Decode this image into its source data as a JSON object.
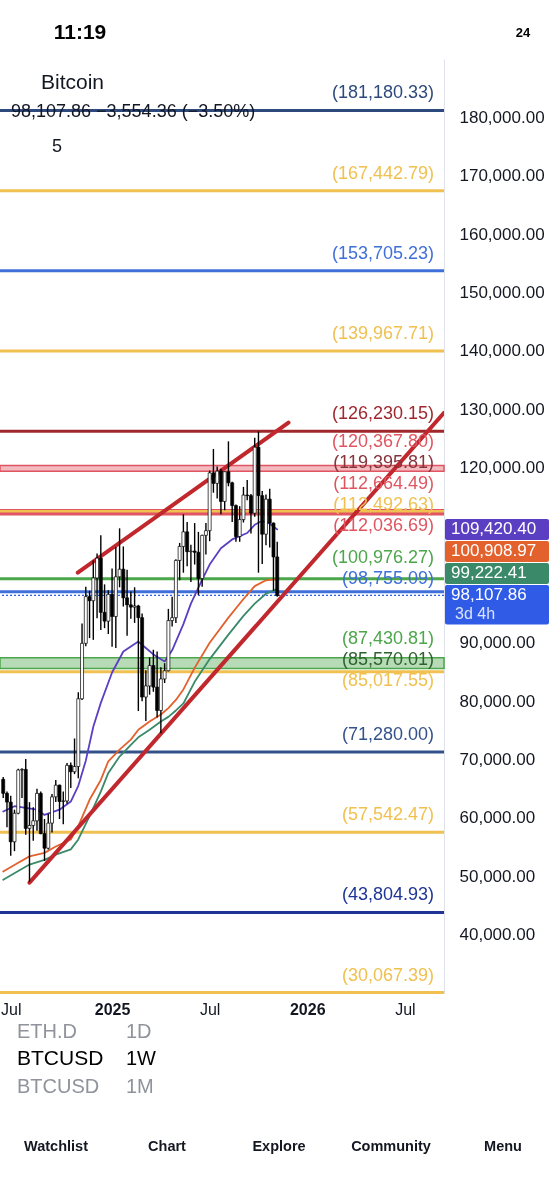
{
  "chart_data": {
    "type": "candlestick",
    "title": "Bitcoin",
    "x": [
      "2024-06-17",
      "2024-06-24",
      "2024-07-01",
      "2024-07-08",
      "2024-07-15",
      "2024-07-22",
      "2024-07-29",
      "2024-08-05",
      "2024-08-12",
      "2024-08-19",
      "2024-08-26",
      "2024-09-02",
      "2024-09-09",
      "2024-09-16",
      "2024-09-23",
      "2024-09-30",
      "2024-10-07",
      "2024-10-14",
      "2024-10-21",
      "2024-10-28",
      "2024-11-04",
      "2024-11-11",
      "2024-11-18",
      "2024-11-25",
      "2024-12-02",
      "2024-12-09",
      "2024-12-16",
      "2024-12-23",
      "2024-12-30",
      "2025-01-06",
      "2025-01-13",
      "2025-01-20",
      "2025-01-27",
      "2025-02-03",
      "2025-02-10",
      "2025-02-17",
      "2025-02-24",
      "2025-03-03",
      "2025-03-10",
      "2025-03-17",
      "2025-03-24",
      "2025-03-31",
      "2025-04-07",
      "2025-04-14",
      "2025-04-21",
      "2025-04-28",
      "2025-05-05",
      "2025-05-12",
      "2025-05-19",
      "2025-05-26",
      "2025-06-02",
      "2025-06-09",
      "2025-06-16",
      "2025-06-23",
      "2025-06-30",
      "2025-07-07",
      "2025-07-14",
      "2025-07-21",
      "2025-07-28",
      "2025-08-04",
      "2025-08-11",
      "2025-08-18",
      "2025-08-25",
      "2025-09-01",
      "2025-09-08",
      "2025-09-15",
      "2025-09-22",
      "2025-09-29",
      "2025-10-06",
      "2025-10-13",
      "2025-10-20",
      "2025-10-27",
      "2025-11-03",
      "2025-11-10"
    ],
    "ohlc": [
      [
        66600,
        67000,
        63400,
        64200
      ],
      [
        64200,
        64500,
        58400,
        62700
      ],
      [
        62700,
        63800,
        53500,
        55900
      ],
      [
        55900,
        61400,
        54300,
        60800
      ],
      [
        60800,
        68400,
        60600,
        68200
      ],
      [
        68200,
        68500,
        63400,
        68300
      ],
      [
        68300,
        70100,
        57100,
        58200
      ],
      [
        58200,
        62700,
        49000,
        58700
      ],
      [
        58700,
        61800,
        56100,
        59500
      ],
      [
        59500,
        65000,
        57800,
        64200
      ],
      [
        64200,
        64500,
        57200,
        57300
      ],
      [
        57300,
        59800,
        52600,
        54800
      ],
      [
        54800,
        60700,
        54600,
        59100
      ],
      [
        59100,
        64100,
        57500,
        63600
      ],
      [
        63600,
        66500,
        62700,
        65600
      ],
      [
        65600,
        65700,
        59800,
        62800
      ],
      [
        62800,
        64500,
        58900,
        62900
      ],
      [
        62900,
        69400,
        62400,
        69000
      ],
      [
        69000,
        69500,
        65100,
        67900
      ],
      [
        67900,
        73600,
        67500,
        68800
      ],
      [
        68800,
        81500,
        66800,
        80400
      ],
      [
        80400,
        93300,
        80200,
        89900
      ],
      [
        89900,
        99600,
        89400,
        97900
      ],
      [
        97900,
        98900,
        90800,
        97200
      ],
      [
        97200,
        104100,
        90500,
        101100
      ],
      [
        101100,
        105300,
        94200,
        104500
      ],
      [
        104500,
        108400,
        92200,
        95200
      ],
      [
        95200,
        100000,
        92500,
        93700
      ],
      [
        93700,
        99000,
        91500,
        98300
      ],
      [
        98300,
        102700,
        89300,
        94500
      ],
      [
        94500,
        106400,
        89100,
        101300
      ],
      [
        101300,
        109600,
        99500,
        102600
      ],
      [
        102600,
        106500,
        96200,
        97700
      ],
      [
        97700,
        102500,
        91200,
        96500
      ],
      [
        96500,
        98800,
        94100,
        96100
      ],
      [
        96100,
        99500,
        93400,
        96300
      ],
      [
        96300,
        96500,
        78300,
        94300
      ],
      [
        94300,
        95000,
        80000,
        80700
      ],
      [
        80700,
        85300,
        76600,
        82600
      ],
      [
        82600,
        87500,
        81100,
        86100
      ],
      [
        86100,
        88800,
        81600,
        82400
      ],
      [
        82400,
        88500,
        77200,
        78400
      ],
      [
        78400,
        85800,
        74500,
        83800
      ],
      [
        83800,
        86500,
        83100,
        85200
      ],
      [
        85200,
        95800,
        85100,
        93800
      ],
      [
        93800,
        97900,
        92800,
        94300
      ],
      [
        94300,
        104300,
        93400,
        104100
      ],
      [
        104100,
        107100,
        100700,
        106500
      ],
      [
        106500,
        112000,
        102000,
        109000
      ],
      [
        109000,
        110700,
        103100,
        105600
      ],
      [
        105600,
        106800,
        100400,
        105700
      ],
      [
        105700,
        110500,
        103400,
        105500
      ],
      [
        105500,
        109000,
        98200,
        101000
      ],
      [
        101000,
        108500,
        99600,
        108400
      ],
      [
        108400,
        110500,
        105100,
        109200
      ],
      [
        109200,
        119500,
        107400,
        119100
      ],
      [
        119100,
        123200,
        115700,
        117300
      ],
      [
        117300,
        120200,
        114700,
        119400
      ],
      [
        119400,
        119800,
        112000,
        114200
      ],
      [
        114200,
        119300,
        112700,
        119300
      ],
      [
        119300,
        124500,
        116800,
        117400
      ],
      [
        117400,
        117600,
        110700,
        113500
      ],
      [
        113500,
        113700,
        107300,
        108200
      ],
      [
        108200,
        113400,
        107300,
        111100
      ],
      [
        111100,
        116700,
        110600,
        115300
      ],
      [
        115300,
        117900,
        114400,
        115200
      ],
      [
        115200,
        115500,
        108700,
        112200
      ],
      [
        112200,
        125100,
        111600,
        123500
      ],
      [
        123500,
        126200,
        102000,
        115200
      ],
      [
        115200,
        116000,
        103500,
        108600
      ],
      [
        108600,
        115400,
        106700,
        114600
      ],
      [
        114600,
        116400,
        106300,
        110500
      ],
      [
        110500,
        110600,
        98900,
        104700
      ],
      [
        104700,
        107300,
        97900,
        98107.86
      ]
    ],
    "colors": [
      "#000000",
      "#000000",
      "#000000",
      "#ffffff",
      "#ffffff",
      "#ffffff",
      "#000000",
      "#ffffff",
      "#ffffff",
      "#ffffff",
      "#000000",
      "#000000",
      "#ffffff",
      "#ffffff",
      "#ffffff",
      "#000000",
      "#ffffff",
      "#ffffff",
      "#000000",
      "#ffffff",
      "#ffffff",
      "#ffffff",
      "#ffffff",
      "#000000",
      "#ffffff",
      "#ffffff",
      "#000000",
      "#000000",
      "#ffffff",
      "#000000",
      "#ffffff",
      "#ffffff",
      "#000000",
      "#000000",
      "#000000",
      "#ffffff",
      "#000000",
      "#000000",
      "#ffffff",
      "#ffffff",
      "#000000",
      "#000000",
      "#ffffff",
      "#ffffff",
      "#ffffff",
      "#ffffff",
      "#ffffff",
      "#ffffff",
      "#ffffff",
      "#000000",
      "#ffffff",
      "#000000",
      "#000000",
      "#ffffff",
      "#ffffff",
      "#ffffff",
      "#000000",
      "#ffffff",
      "#000000",
      "#ffffff",
      "#000000",
      "#000000",
      "#000000",
      "#ffffff",
      "#ffffff",
      "#000000",
      "#000000",
      "#ffffff",
      "#000000",
      "#000000",
      "#ffffff",
      "#000000",
      "#000000",
      "#000000"
    ],
    "series": [
      {
        "type": "line",
        "color": "#5b3fc2",
        "x": [
          "2024-06-17",
          "2024-07-08",
          "2024-08-19",
          "2024-09-02",
          "2024-09-30",
          "2024-10-21",
          "2024-11-04",
          "2024-11-18",
          "2024-12-02",
          "2024-12-16",
          "2025-01-06",
          "2025-01-27",
          "2025-02-24",
          "2025-03-10",
          "2025-03-24",
          "2025-04-14",
          "2025-04-28",
          "2025-05-19",
          "2025-06-02",
          "2025-06-23",
          "2025-07-07",
          "2025-07-28",
          "2025-08-18",
          "2025-09-15",
          "2025-09-29",
          "2025-10-13",
          "2025-10-27",
          "2025-11-10"
        ],
        "values": [
          61100,
          62000,
          61400,
          60500,
          61400,
          62800,
          65500,
          69800,
          75600,
          79700,
          84900,
          88500,
          90200,
          89100,
          88000,
          86800,
          88700,
          93200,
          96700,
          100800,
          103400,
          106200,
          107700,
          108800,
          110200,
          110900,
          110400,
          109420.4
        ]
      },
      {
        "type": "line",
        "color": "#e2612d",
        "x": [
          "2024-06-17",
          "2024-07-15",
          "2024-08-05",
          "2024-09-02",
          "2024-09-23",
          "2024-10-21",
          "2024-11-04",
          "2024-11-25",
          "2024-12-16",
          "2024-12-30",
          "2025-01-20",
          "2025-02-10",
          "2025-02-24",
          "2025-03-17",
          "2025-04-07",
          "2025-04-21",
          "2025-05-05",
          "2025-05-19",
          "2025-06-09",
          "2025-07-07",
          "2025-08-11",
          "2025-09-08",
          "2025-09-29",
          "2025-10-20",
          "2025-11-10"
        ],
        "values": [
          50800,
          52300,
          53400,
          54000,
          55100,
          56300,
          58600,
          63100,
          66500,
          69700,
          71700,
          73400,
          75100,
          76500,
          77700,
          78800,
          80200,
          82000,
          85700,
          90000,
          94300,
          97500,
          99700,
          100700,
          100908.97
        ]
      },
      {
        "type": "line",
        "color": "#3a8a6a",
        "x": [
          "2024-06-17",
          "2024-07-15",
          "2024-08-05",
          "2024-09-02",
          "2024-09-23",
          "2024-10-21",
          "2024-11-04",
          "2024-11-25",
          "2024-12-16",
          "2024-12-30",
          "2025-01-20",
          "2025-02-10",
          "2025-02-24",
          "2025-03-17",
          "2025-04-07",
          "2025-04-21",
          "2025-05-05",
          "2025-05-19",
          "2025-06-09",
          "2025-07-07",
          "2025-08-11",
          "2025-09-08",
          "2025-09-29",
          "2025-10-20",
          "2025-11-10"
        ],
        "values": [
          49400,
          50900,
          52000,
          52800,
          53700,
          54600,
          56300,
          60300,
          64500,
          67700,
          70500,
          72500,
          73800,
          75100,
          76500,
          77300,
          78400,
          79600,
          83300,
          87200,
          91400,
          94600,
          96700,
          98400,
          99222.41
        ]
      },
      {
        "type": "line",
        "color": "#c0282d",
        "x": [
          "2024-11-03",
          "2025-12-01"
        ],
        "values": [
          102000,
          127700
        ]
      },
      {
        "type": "line",
        "color": "#c0282d",
        "x": [
          "2024-08-05",
          "2026-09-17"
        ],
        "values": [
          48900,
          129400
        ]
      }
    ],
    "ref_lines": [
      {
        "axis": "y",
        "value": 181180.33,
        "label": "(181,180.33)",
        "color": "#2e4a7d"
      },
      {
        "axis": "y",
        "value": 167442.79,
        "label": "(167,442.79)",
        "color": "#f0c050"
      },
      {
        "axis": "y",
        "value": 153705.23,
        "label": "(153,705.23)",
        "color": "#3f6fd8"
      },
      {
        "axis": "y",
        "value": 139967.71,
        "label": "(139,967.71)",
        "color": "#f0c050"
      },
      {
        "axis": "y",
        "value": 126230.15,
        "label": "(126,230.15)",
        "color": "#a0282d"
      },
      {
        "axis": "y",
        "value": 112664.49,
        "label": "(112,664.49)",
        "color": "#e05561"
      },
      {
        "axis": "y",
        "value": 112492.63,
        "label": "(112,492.63)",
        "color": "#f0c050"
      },
      {
        "axis": "y",
        "value": 112036.69,
        "label": "(112,036.69)",
        "color": "#e05561"
      },
      {
        "axis": "y",
        "value": 100976.27,
        "label": "(100,976.27)",
        "color": "#4ca64a"
      },
      {
        "axis": "y",
        "value": 98755.09,
        "label": "(98,755.09)",
        "color": "#3f6fd8"
      },
      {
        "axis": "y",
        "value": 98107.86,
        "label": "98,107.86",
        "color": "#2f5be6",
        "line_style": "dotted"
      },
      {
        "axis": "y",
        "value": 85017.55,
        "label": "(85,017.55)",
        "color": "#f0c050"
      },
      {
        "axis": "y",
        "value": 71280.0,
        "label": "(71,280.00)",
        "color": "#34528a"
      },
      {
        "axis": "y",
        "value": 57542.47,
        "label": "(57,542.47)",
        "color": "#f0c050"
      },
      {
        "axis": "y",
        "value": 43804.93,
        "label": "(43,804.93)",
        "color": "#1f3596"
      },
      {
        "axis": "y",
        "value": 30067.39,
        "label": "(30,067.39)",
        "color": "#f0c050"
      }
    ],
    "bands": [
      {
        "axis": "y",
        "from": 119395.81,
        "to": 120367.8,
        "color": "#e05561"
      },
      {
        "axis": "y",
        "from": 85570.01,
        "to": 87430.81,
        "color": "#4ca64a"
      }
    ],
    "xlim": [
      "2024-06-11",
      "2026-09-17"
    ],
    "xticks": [
      {
        "value": "2024-07-01",
        "label": "Jul"
      },
      {
        "value": "2025-01-06",
        "label": "2025"
      },
      {
        "value": "2025-07-07",
        "label": "Jul"
      },
      {
        "value": "2026-01-05",
        "label": "2026"
      },
      {
        "value": "2026-07-06",
        "label": "Jul"
      }
    ],
    "ylim": [
      30000,
      190000
    ],
    "yticks": [
      {
        "value": 40000,
        "label": "40,000.00"
      },
      {
        "value": 50000,
        "label": "50,000.00"
      },
      {
        "value": 60000,
        "label": "60,000.00"
      },
      {
        "value": 70000,
        "label": "70,000.00"
      },
      {
        "value": 80000,
        "label": "80,000.00"
      },
      {
        "value": 90000,
        "label": "90,000.00"
      },
      {
        "value": 120000,
        "label": "120,000.00"
      },
      {
        "value": 130000,
        "label": "130,000.00"
      },
      {
        "value": 140000,
        "label": "140,000.00"
      },
      {
        "value": 150000,
        "label": "150,000.00"
      },
      {
        "value": 160000,
        "label": "160,000.00"
      },
      {
        "value": 170000,
        "label": "170,000.00"
      },
      {
        "value": 180000,
        "label": "180,000.00"
      }
    ],
    "annotations": [
      "11:19",
      "24",
      "98,107.86 −3,554.36 (−3.50%)",
      "5",
      "3d 4h",
      "ETH.D",
      "1D",
      "BTCUSD",
      "1W",
      "BTCUSD",
      "1M",
      "Watchlist",
      "Chart",
      "Explore",
      "Community",
      "Menu",
      "109,420.40",
      "100,908.97",
      "99,222.41",
      {
        "text": "(120,367.80)",
        "y": 120367.8
      },
      {
        "text": "(119,395.81)",
        "y": 119395.81
      },
      {
        "text": "(87,430.81)",
        "y": 87430.81
      },
      {
        "text": "(85,570.01)",
        "y": 85570.01
      }
    ]
  }
}
